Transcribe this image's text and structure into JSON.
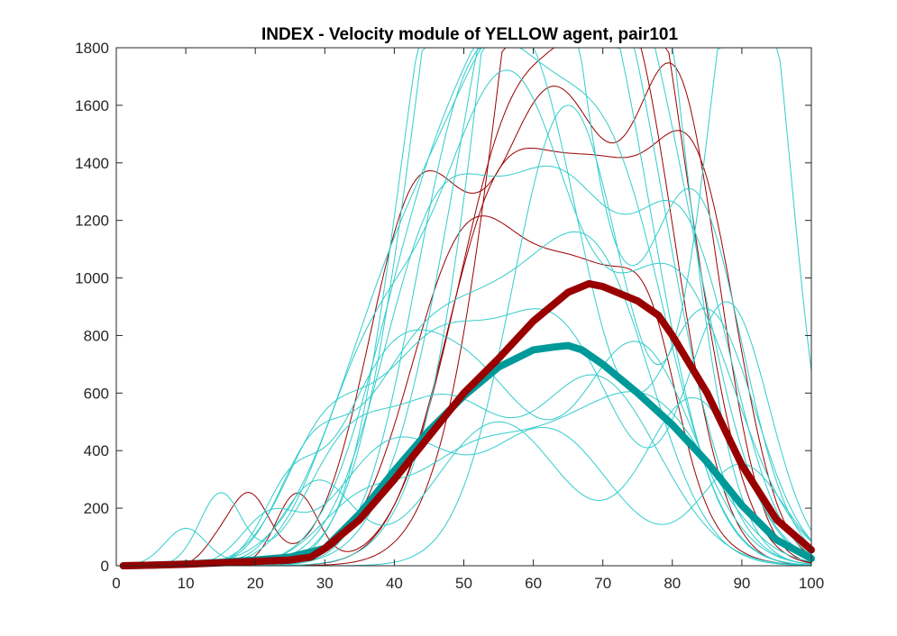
{
  "chart_data": {
    "type": "line",
    "title": "INDEX - Velocity module of YELLOW agent, pair101",
    "xlabel": "",
    "ylabel": "",
    "xlim": [
      0,
      100
    ],
    "ylim": [
      0,
      1800
    ],
    "xticks": [
      0,
      10,
      20,
      30,
      40,
      50,
      60,
      70,
      80,
      90,
      100
    ],
    "yticks": [
      0,
      200,
      400,
      600,
      800,
      1000,
      1200,
      1400,
      1600,
      1800
    ],
    "grid": false,
    "legend": "none",
    "colors": {
      "mean_red": "#990000",
      "mean_teal": "#009999",
      "trial_red": "#990000",
      "trial_cyan": "#33CCCC"
    },
    "mean_series": [
      {
        "color": "#990000",
        "x": [
          1,
          5,
          10,
          15,
          20,
          25,
          28,
          30,
          35,
          40,
          45,
          50,
          55,
          60,
          65,
          68,
          70,
          75,
          78,
          80,
          85,
          90,
          95,
          100
        ],
        "y": [
          0,
          2,
          5,
          10,
          15,
          20,
          30,
          60,
          160,
          300,
          450,
          600,
          720,
          850,
          950,
          980,
          970,
          920,
          870,
          800,
          600,
          350,
          160,
          55
        ]
      },
      {
        "color": "#009999",
        "x": [
          1,
          5,
          10,
          15,
          20,
          25,
          30,
          35,
          40,
          45,
          50,
          55,
          60,
          63,
          65,
          67,
          70,
          75,
          80,
          85,
          90,
          95,
          100
        ],
        "y": [
          0,
          2,
          6,
          12,
          20,
          30,
          60,
          180,
          330,
          470,
          590,
          690,
          750,
          760,
          765,
          750,
          700,
          600,
          490,
          360,
          210,
          90,
          25
        ]
      }
    ],
    "trial_series": [
      {
        "color": "#990000",
        "peaks": [
          [
            63,
            1630,
            9
          ],
          [
            81,
            1490,
            6
          ],
          [
            43,
            1200,
            7
          ],
          [
            19,
            250,
            3
          ],
          [
            14,
            40,
            2
          ]
        ]
      },
      {
        "color": "#990000",
        "peaks": [
          [
            58,
            1560,
            9
          ],
          [
            74,
            1600,
            7
          ],
          [
            26,
            250,
            3
          ]
        ]
      },
      {
        "color": "#990000",
        "peaks": [
          [
            66,
            1530,
            8
          ],
          [
            62,
            1470,
            9
          ],
          [
            78,
            1220,
            7
          ]
        ]
      },
      {
        "color": "#990000",
        "peaks": [
          [
            55,
            1220,
            8
          ],
          [
            71,
            1150,
            8
          ],
          [
            84,
            1110,
            6
          ]
        ]
      },
      {
        "color": "#990000",
        "peaks": [
          [
            50,
            1050,
            8
          ],
          [
            68,
            950,
            9
          ],
          [
            77,
            340,
            4
          ]
        ]
      },
      {
        "color": "#33CCCC",
        "peaks": [
          [
            65,
            1600,
            8
          ],
          [
            89,
            1390,
            6
          ],
          [
            93,
            1110,
            5
          ]
        ]
      },
      {
        "color": "#33CCCC",
        "peaks": [
          [
            60,
            1420,
            8
          ],
          [
            56,
            1290,
            9
          ],
          [
            48,
            1210,
            8
          ],
          [
            83,
            1270,
            7
          ]
        ]
      },
      {
        "color": "#33CCCC",
        "peaks": [
          [
            62,
            1380,
            7
          ],
          [
            70,
            1350,
            8
          ],
          [
            58,
            1330,
            9
          ],
          [
            76,
            1300,
            7
          ]
        ]
      },
      {
        "color": "#33CCCC",
        "peaks": [
          [
            52,
            1240,
            8
          ],
          [
            64,
            1180,
            8
          ],
          [
            72,
            1080,
            8
          ],
          [
            46,
            1150,
            7
          ]
        ]
      },
      {
        "color": "#33CCCC",
        "peaks": [
          [
            54,
            1000,
            9
          ],
          [
            60,
            950,
            9
          ],
          [
            67,
            1060,
            8
          ],
          [
            78,
            1180,
            8
          ]
        ]
      },
      {
        "color": "#33CCCC",
        "peaks": [
          [
            44,
            900,
            8
          ],
          [
            57,
            1120,
            9
          ],
          [
            66,
            1030,
            9
          ],
          [
            74,
            980,
            8
          ]
        ]
      },
      {
        "color": "#33CCCC",
        "peaks": [
          [
            40,
            800,
            9
          ],
          [
            53,
            870,
            9
          ],
          [
            61,
            1100,
            8
          ],
          [
            85,
            880,
            7
          ]
        ]
      },
      {
        "color": "#33CCCC",
        "peaks": [
          [
            36,
            600,
            7
          ],
          [
            49,
            760,
            8
          ],
          [
            59,
            1250,
            8
          ],
          [
            80,
            1000,
            9
          ]
        ]
      },
      {
        "color": "#33CCCC",
        "peaks": [
          [
            30,
            420,
            6
          ],
          [
            45,
            680,
            8
          ],
          [
            63,
            820,
            9
          ],
          [
            88,
            900,
            6
          ]
        ]
      },
      {
        "color": "#33CCCC",
        "peaks": [
          [
            28,
            330,
            5
          ],
          [
            42,
            560,
            8
          ],
          [
            56,
            700,
            9
          ],
          [
            70,
            880,
            8
          ]
        ]
      },
      {
        "color": "#33CCCC",
        "peaks": [
          [
            25,
            240,
            4
          ],
          [
            38,
            500,
            7
          ],
          [
            51,
            640,
            9
          ],
          [
            75,
            760,
            8
          ]
        ]
      },
      {
        "color": "#33CCCC",
        "peaks": [
          [
            15,
            250,
            3
          ],
          [
            33,
            360,
            6
          ],
          [
            47,
            540,
            8
          ],
          [
            69,
            650,
            9
          ]
        ]
      },
      {
        "color": "#33CCCC",
        "peaks": [
          [
            10,
            130,
            3
          ],
          [
            29,
            290,
            5
          ],
          [
            55,
            500,
            9
          ],
          [
            83,
            580,
            7
          ]
        ]
      },
      {
        "color": "#33CCCC",
        "peaks": [
          [
            22,
            160,
            4
          ],
          [
            40,
            420,
            8
          ],
          [
            62,
            470,
            9
          ],
          [
            90,
            350,
            6
          ]
        ]
      },
      {
        "color": "#33CCCC",
        "peaks": [
          [
            35,
            200,
            6
          ],
          [
            50,
            330,
            8
          ],
          [
            66,
            380,
            9
          ],
          [
            79,
            420,
            8
          ]
        ]
      },
      {
        "color": "#33CCCC",
        "peaks": [
          [
            48,
            1000,
            7
          ],
          [
            58,
            1180,
            8
          ],
          [
            72,
            1210,
            8
          ]
        ]
      },
      {
        "color": "#33CCCC",
        "peaks": [
          [
            46,
            1120,
            8
          ],
          [
            64,
            1250,
            9
          ],
          [
            82,
            1050,
            7
          ]
        ]
      }
    ],
    "x": [
      0,
      10,
      20,
      30,
      40,
      50,
      60,
      70,
      80,
      90,
      100
    ]
  }
}
